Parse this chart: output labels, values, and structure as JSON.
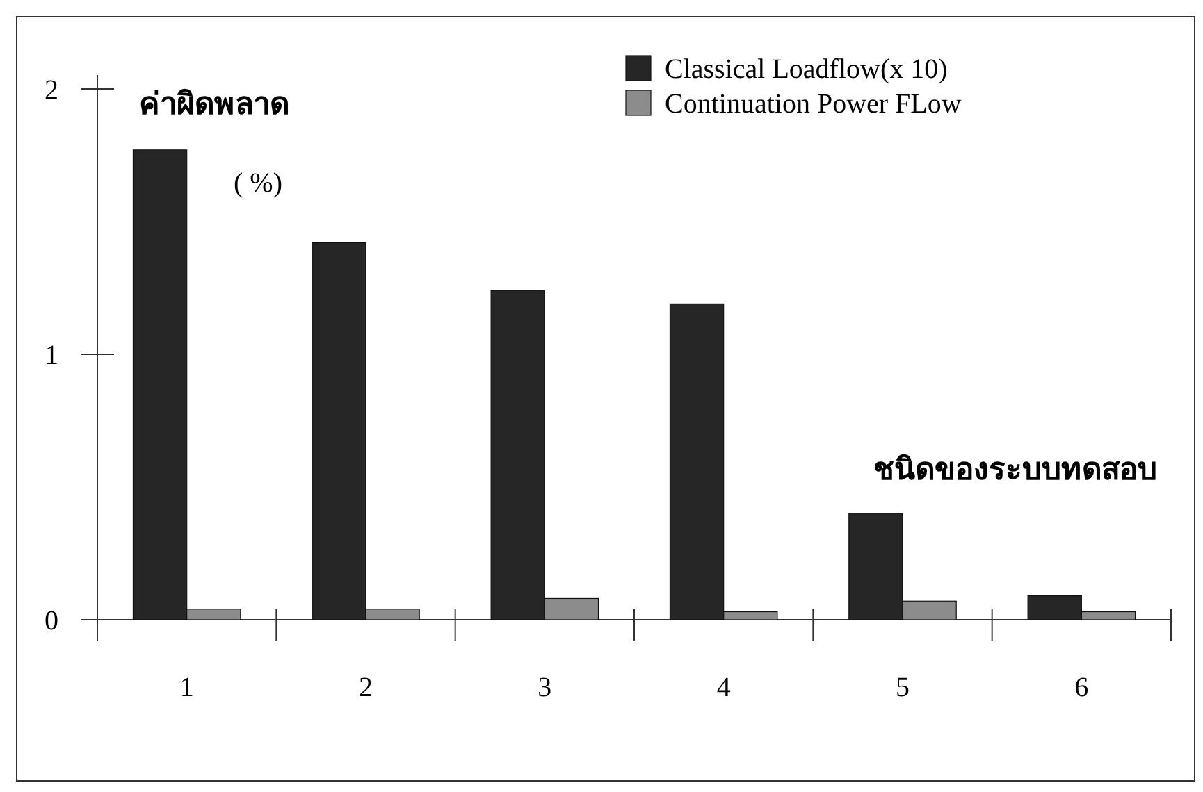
{
  "chart_data": {
    "type": "bar",
    "ylabel": "ค่าผิดพลาด",
    "xlabel": "ชนิดของระบบทดสอบ",
    "annotations": [
      "( %)"
    ],
    "categories": [
      "1",
      "2",
      "3",
      "4",
      "5",
      "6"
    ],
    "series": [
      {
        "name": "Classical Loadflow(x 10)",
        "color": "#262626",
        "values": [
          1.77,
          1.42,
          1.24,
          1.19,
          0.4,
          0.09
        ]
      },
      {
        "name": "Continuation Power FLow",
        "color": "#8c8c8c",
        "values": [
          0.04,
          0.04,
          0.08,
          0.03,
          0.07,
          0.03
        ]
      }
    ],
    "ylim": [
      0,
      2
    ],
    "yticks": [
      0,
      1,
      2
    ],
    "legend": "top right",
    "grid": false
  }
}
